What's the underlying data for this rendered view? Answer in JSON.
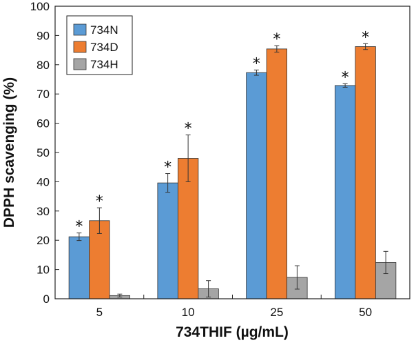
{
  "chart_data": {
    "type": "bar",
    "title": "",
    "xlabel": "734THIF (µg/mL)",
    "ylabel": "DPPH scavenging (%)",
    "ylim": [
      0,
      100
    ],
    "yticks": [
      0,
      10,
      20,
      30,
      40,
      50,
      60,
      70,
      80,
      90,
      100
    ],
    "categories": [
      "5",
      "10",
      "25",
      "50"
    ],
    "series": [
      {
        "name": "734N",
        "color": "#5B9BD5",
        "values": [
          21.2,
          39.6,
          77.3,
          72.9
        ],
        "errors": [
          1.3,
          3.2,
          0.9,
          0.6
        ],
        "significance": [
          "*",
          "*",
          "*",
          "*"
        ]
      },
      {
        "name": "734D",
        "color": "#ED7D31",
        "values": [
          26.7,
          48.0,
          85.4,
          86.2
        ],
        "errors": [
          4.4,
          8.0,
          1.1,
          1.0
        ],
        "significance": [
          "*",
          "*",
          "*",
          "*"
        ]
      },
      {
        "name": "734H",
        "color": "#A5A5A5",
        "values": [
          1.1,
          3.4,
          7.3,
          12.4
        ],
        "errors": [
          0.5,
          2.8,
          4.0,
          3.8
        ],
        "significance": [
          "",
          "",
          "",
          ""
        ]
      }
    ],
    "legend_position": "top-left",
    "grid": false
  }
}
